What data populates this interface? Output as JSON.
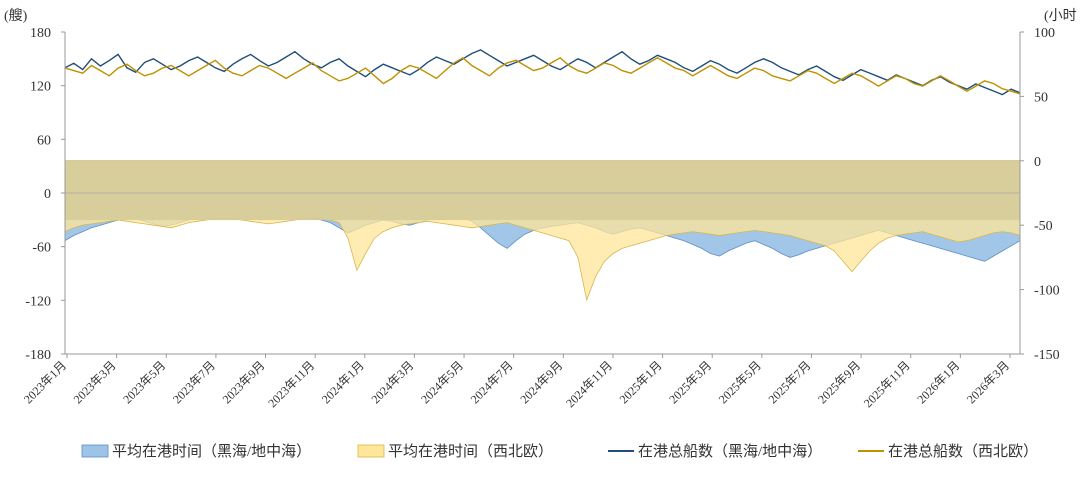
{
  "chart_data": {
    "type": "line",
    "left_axis": {
      "unit": "(艘)",
      "ticks": [
        180,
        120,
        60,
        0,
        -60,
        -120,
        -180
      ],
      "range": [
        -180,
        180
      ]
    },
    "right_axis": {
      "unit": "(小时",
      "ticks": [
        100,
        50,
        0,
        -50,
        -100,
        -150
      ],
      "range": [
        -150,
        100
      ]
    },
    "x_labels": [
      "2023年1月",
      "2023年3月",
      "2023年5月",
      "2023年7月",
      "2023年9月",
      "2023年11月",
      "2024年1月",
      "2024年3月",
      "2024年5月",
      "2024年7月",
      "2024年9月",
      "2024年11月",
      "2025年1月",
      "2025年3月",
      "2025年5月",
      "2025年7月",
      "2025年9月",
      "2025年11月",
      "2026年1月",
      "2026年3月"
    ],
    "legend": {
      "position": "bottom"
    },
    "series": [
      {
        "name": "平均在港时间（黑海/地中海）",
        "kind": "area",
        "axis": "right",
        "color": "#9dc3e6",
        "values": [
          -62,
          -58,
          -55,
          -52,
          -50,
          -48,
          -46,
          -44,
          -45,
          -47,
          -49,
          -51,
          -50,
          -48,
          -46,
          -44,
          -42,
          -40,
          -41,
          -43,
          -42,
          -44,
          -46,
          -45,
          -43,
          -41,
          -40,
          -42,
          -44,
          -46,
          -48,
          -52,
          -56,
          -53,
          -50,
          -48,
          -46,
          -47,
          -49,
          -50,
          -48,
          -46,
          -44,
          -43,
          -42,
          -44,
          -47,
          -52,
          -58,
          -64,
          -68,
          -62,
          -57,
          -54,
          -52,
          -51,
          -50,
          -49,
          -48,
          -50,
          -52,
          -55,
          -57,
          -55,
          -53,
          -52,
          -54,
          -56,
          -58,
          -60,
          -62,
          -65,
          -68,
          -72,
          -74,
          -70,
          -67,
          -64,
          -62,
          -65,
          -68,
          -72,
          -75,
          -73,
          -70,
          -68,
          -66,
          -64,
          -62,
          -60,
          -58,
          -56,
          -54,
          -56,
          -58,
          -60,
          -62,
          -64,
          -66,
          -68,
          -70,
          -72,
          -74,
          -76,
          -78,
          -74,
          -70,
          -66,
          -62
        ]
      },
      {
        "name": "平均在港时间（西北欧）",
        "kind": "area",
        "axis": "right",
        "color": "#ffe699",
        "values": [
          -55,
          -52,
          -50,
          -49,
          -48,
          -47,
          -46,
          -47,
          -48,
          -49,
          -50,
          -51,
          -52,
          -50,
          -48,
          -47,
          -46,
          -45,
          -44,
          -45,
          -46,
          -47,
          -48,
          -49,
          -48,
          -47,
          -46,
          -45,
          -44,
          -45,
          -46,
          -48,
          -60,
          -85,
          -72,
          -60,
          -55,
          -52,
          -50,
          -49,
          -48,
          -47,
          -48,
          -49,
          -50,
          -51,
          -52,
          -51,
          -50,
          -49,
          -48,
          -50,
          -52,
          -54,
          -56,
          -58,
          -60,
          -62,
          -75,
          -108,
          -90,
          -78,
          -72,
          -68,
          -66,
          -64,
          -62,
          -60,
          -58,
          -57,
          -56,
          -55,
          -56,
          -57,
          -58,
          -57,
          -56,
          -55,
          -54,
          -55,
          -56,
          -57,
          -58,
          -60,
          -62,
          -64,
          -66,
          -70,
          -78,
          -86,
          -78,
          -70,
          -64,
          -60,
          -58,
          -57,
          -56,
          -55,
          -57,
          -59,
          -61,
          -63,
          -62,
          -60,
          -58,
          -56,
          -55,
          -56,
          -58
        ]
      },
      {
        "name": "在港总船数（黑海/地中海）",
        "kind": "line",
        "axis": "left",
        "color": "#1f4e79",
        "values": [
          140,
          145,
          138,
          150,
          142,
          148,
          155,
          140,
          135,
          146,
          150,
          144,
          138,
          142,
          148,
          152,
          146,
          140,
          136,
          144,
          150,
          155,
          148,
          142,
          146,
          152,
          158,
          150,
          144,
          140,
          146,
          150,
          142,
          136,
          130,
          138,
          144,
          140,
          136,
          132,
          138,
          146,
          152,
          148,
          144,
          150,
          156,
          160,
          154,
          148,
          142,
          146,
          150,
          154,
          148,
          142,
          138,
          144,
          150,
          146,
          140,
          146,
          152,
          158,
          150,
          144,
          148,
          154,
          150,
          146,
          140,
          136,
          142,
          148,
          144,
          138,
          134,
          140,
          146,
          150,
          146,
          140,
          136,
          132,
          138,
          142,
          136,
          130,
          126,
          132,
          138,
          134,
          130,
          126,
          132,
          128,
          124,
          120,
          126,
          130,
          124,
          120,
          116,
          122,
          118,
          114,
          110,
          116,
          112
        ]
      },
      {
        "name": "在港总船数（西北欧）",
        "kind": "line",
        "axis": "right",
        "color": "#bf9000",
        "values": [
          72,
          70,
          68,
          74,
          70,
          66,
          72,
          75,
          70,
          66,
          68,
          72,
          74,
          70,
          66,
          70,
          74,
          78,
          72,
          68,
          66,
          70,
          74,
          72,
          68,
          64,
          68,
          72,
          76,
          70,
          66,
          62,
          64,
          68,
          72,
          66,
          60,
          64,
          70,
          74,
          72,
          68,
          64,
          70,
          76,
          80,
          74,
          70,
          66,
          72,
          76,
          78,
          74,
          70,
          72,
          76,
          80,
          74,
          70,
          68,
          72,
          76,
          74,
          70,
          68,
          72,
          76,
          80,
          76,
          72,
          70,
          66,
          70,
          74,
          70,
          66,
          64,
          68,
          72,
          70,
          66,
          64,
          62,
          66,
          70,
          68,
          64,
          60,
          64,
          68,
          66,
          62,
          58,
          62,
          66,
          64,
          60,
          58,
          62,
          66,
          62,
          58,
          54,
          58,
          62,
          60,
          56,
          54,
          52
        ]
      }
    ]
  }
}
